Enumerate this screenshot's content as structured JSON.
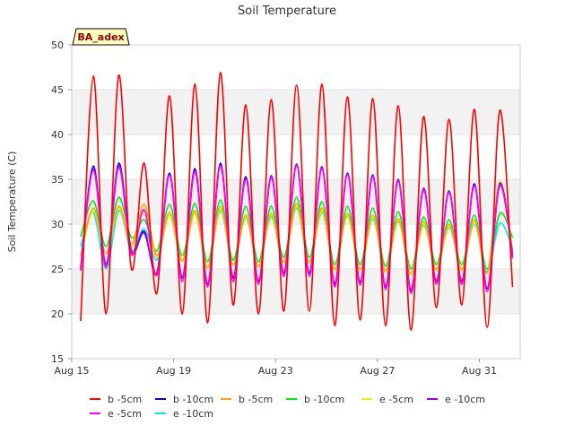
{
  "chart_data": {
    "type": "line",
    "title": "Soil Temperature",
    "ylabel": "Soil Temperature (C)",
    "xlabel": "",
    "ylim": [
      15,
      50
    ],
    "y_ticks": [
      15,
      20,
      25,
      30,
      35,
      40,
      45,
      50
    ],
    "x_start": "Aug 15",
    "x_range_days": [
      0,
      17.6
    ],
    "x_ticks": [
      {
        "label": "Aug 15",
        "day": 0
      },
      {
        "label": "Aug 19",
        "day": 4
      },
      {
        "label": "Aug 23",
        "day": 8
      },
      {
        "label": "Aug 27",
        "day": 12
      },
      {
        "label": "Aug 31",
        "day": 16
      }
    ],
    "annotation": "BA_adex",
    "grid": "horizontal bands",
    "legend_position": "bottom",
    "series": [
      {
        "name": "b -5cm",
        "color": "#ff0000",
        "values": [
          19.2,
          46.5,
          20.0,
          46.6,
          25.0,
          36.8,
          22.3,
          44.3,
          20.0,
          45.6,
          19.0,
          46.9,
          21.0,
          43.3,
          20.0,
          43.9,
          20.3,
          45.5,
          20.3,
          45.6,
          18.7,
          44.2,
          19.3,
          44.0,
          18.7,
          43.2,
          18.2,
          42.0,
          20.7,
          41.7,
          21.0,
          42.8,
          18.5,
          42.7,
          23.0
        ]
      },
      {
        "name": "b -10cm",
        "color": "#0000dd",
        "values": [
          25.0,
          36.5,
          25.5,
          36.8,
          27.0,
          29.2,
          24.5,
          35.7,
          24.0,
          36.2,
          23.3,
          36.8,
          24.0,
          35.3,
          23.6,
          35.4,
          24.5,
          36.7,
          24.5,
          36.4,
          23.3,
          35.7,
          23.5,
          35.5,
          23.0,
          35.0,
          22.6,
          34.0,
          23.6,
          33.7,
          23.6,
          34.5,
          22.8,
          34.5,
          26.5
        ]
      },
      {
        "name": "b -5cm",
        "color": "#ffa500",
        "values": [
          26.5,
          31.8,
          26.8,
          32.0,
          27.8,
          32.2,
          26.5,
          31.3,
          26.0,
          31.5,
          25.2,
          32.0,
          25.5,
          31.0,
          25.3,
          31.2,
          25.8,
          32.3,
          25.8,
          31.8,
          25.0,
          31.2,
          25.0,
          31.0,
          24.8,
          30.6,
          24.5,
          30.3,
          25.0,
          30.0,
          25.0,
          30.5,
          24.6,
          34.7,
          27.0
        ]
      },
      {
        "name": "b -10cm",
        "color": "#00ee00",
        "values": [
          28.6,
          32.6,
          27.5,
          33.0,
          28.5,
          30.5,
          27.0,
          32.2,
          26.5,
          32.3,
          25.8,
          32.7,
          26.0,
          32.0,
          25.8,
          32.0,
          26.3,
          33.0,
          26.3,
          32.5,
          25.5,
          32.0,
          25.5,
          31.8,
          25.3,
          31.4,
          25.0,
          30.8,
          25.5,
          30.5,
          25.5,
          31.0,
          25.0,
          31.2,
          28.5
        ]
      },
      {
        "name": "e -5cm",
        "color": "#eeee00",
        "values": [
          26.4,
          31.5,
          26.7,
          31.8,
          27.5,
          31.6,
          26.3,
          31.0,
          25.8,
          31.2,
          25.0,
          31.7,
          25.4,
          30.8,
          25.2,
          31.0,
          25.6,
          32.0,
          25.6,
          31.5,
          24.8,
          31.0,
          24.8,
          30.8,
          24.6,
          30.4,
          24.3,
          30.0,
          24.8,
          29.8,
          24.8,
          30.3,
          24.5,
          34.2,
          26.8
        ]
      },
      {
        "name": "e -10cm",
        "color": "#9900ee",
        "values": [
          25.2,
          36.2,
          25.6,
          36.5,
          27.0,
          29.0,
          24.6,
          35.5,
          24.1,
          36.0,
          23.4,
          36.6,
          24.1,
          35.1,
          23.7,
          35.2,
          24.6,
          36.5,
          24.6,
          36.2,
          23.4,
          35.5,
          23.6,
          35.3,
          23.1,
          34.8,
          22.7,
          33.8,
          23.7,
          33.5,
          23.7,
          34.3,
          22.9,
          34.3,
          26.6
        ]
      },
      {
        "name": "e -5cm",
        "color": "#ff00ff",
        "values": [
          24.8,
          36.0,
          25.2,
          36.3,
          26.6,
          31.6,
          24.3,
          35.5,
          23.6,
          35.8,
          23.0,
          36.5,
          23.6,
          35.0,
          23.3,
          35.3,
          24.2,
          36.6,
          24.2,
          36.3,
          23.0,
          35.6,
          23.2,
          35.4,
          22.7,
          34.9,
          22.3,
          33.9,
          23.3,
          33.6,
          23.3,
          34.3,
          22.5,
          34.4,
          26.2
        ]
      },
      {
        "name": "e -10cm",
        "color": "#00eeee",
        "values": [
          27.5,
          31.3,
          25.0,
          31.5,
          27.0,
          29.5,
          26.0,
          31.0,
          25.8,
          31.2,
          25.2,
          31.5,
          25.5,
          30.7,
          25.3,
          30.8,
          25.6,
          31.8,
          25.6,
          31.3,
          25.0,
          30.9,
          25.0,
          30.6,
          24.8,
          30.3,
          24.5,
          29.8,
          25.0,
          29.6,
          25.0,
          30.0,
          24.7,
          30.1,
          27.3
        ]
      }
    ]
  }
}
